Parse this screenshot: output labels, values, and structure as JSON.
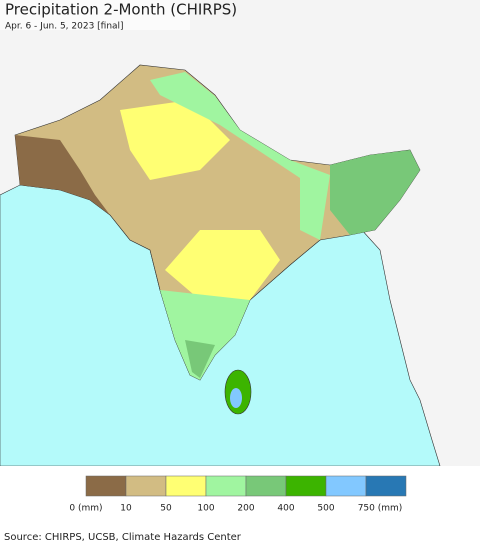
{
  "header": {
    "title": "Precipitation 2-Month (CHIRPS)",
    "subtitle": "Apr. 6 - Jun. 5, 2023 [final]"
  },
  "legend": {
    "colors": [
      "#8b6b47",
      "#d2bc83",
      "#ffff73",
      "#a0f5a0",
      "#78c878",
      "#3cb400",
      "#82c8ff",
      "#2878b4"
    ],
    "labels": [
      "0 (mm)",
      "10",
      "50",
      "100",
      "200",
      "400",
      "500",
      "750 (mm)"
    ]
  },
  "footer": {
    "source": "Source: CHIRPS, UCSB, Climate Hazards Center"
  }
}
